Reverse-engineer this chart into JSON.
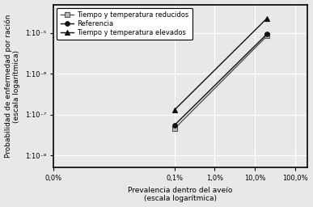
{
  "series": [
    {
      "label": "Tiempo y temperatura reducidos",
      "x": [
        0.001,
        0.2
      ],
      "y": [
        4.5e-08,
        8.5e-06
      ],
      "color": "#555555",
      "marker": "s",
      "markersize": 4,
      "markerfacecolor": "#bbbbbb",
      "linewidth": 1.0
    },
    {
      "label": "Referencia",
      "x": [
        0.001,
        0.2
      ],
      "y": [
        5.5e-08,
        9.5e-06
      ],
      "color": "#111111",
      "marker": "o",
      "markersize": 4,
      "markerfacecolor": "#111111",
      "linewidth": 1.0
    },
    {
      "label": "Tiempo y temperatura elevados",
      "x": [
        0.001,
        0.2
      ],
      "y": [
        1.3e-07,
        2.3e-05
      ],
      "color": "#111111",
      "marker": "^",
      "markersize": 4,
      "markerfacecolor": "#111111",
      "linewidth": 1.0
    }
  ],
  "xlabel": "Prevalencia dentro del aveío\n(escala logarítmica)",
  "ylabel": "Probabilidad de enfermedad por ración\n(escala logarítmica)",
  "xlim_log": [
    -4,
    0
  ],
  "ylim": [
    5e-09,
    5e-05
  ],
  "x_ticks": [
    1e-06,
    0.001,
    0.01,
    0.1,
    1.0
  ],
  "x_labels": [
    "0,0%",
    "0,1%",
    "1,0%",
    "10,0%",
    "100,0%"
  ],
  "y_ticks": [
    1e-08,
    1e-07,
    1e-06,
    1e-05
  ],
  "y_labels": [
    "1:10⁻⁸",
    "1:10⁻⁷",
    "1:10⁻⁶",
    "1:10⁻⁵"
  ],
  "background_color": "#e8e8e8",
  "grid_color": "#ffffff",
  "fontsize_labels": 6.5,
  "fontsize_ticks": 6.0,
  "fontsize_legend": 6.0
}
